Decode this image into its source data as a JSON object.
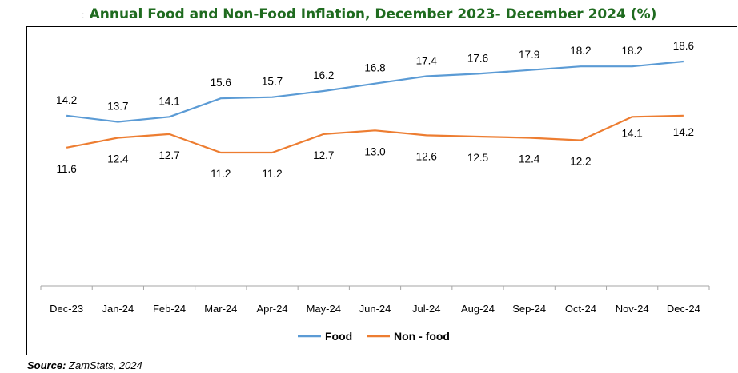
{
  "title_prefix": ":",
  "title": "Annual Food and Non-Food Inflation, December 2023- December 2024 (%)",
  "source_label": "Source:",
  "source_value": " ZamStats, 2024",
  "colors": {
    "food": "#5b9bd5",
    "nonfood": "#ed7d31",
    "title": "#1f6b1f"
  },
  "chart_data": {
    "type": "line",
    "title": "Annual Food and Non-Food Inflation, December 2023- December 2024 (%)",
    "xlabel": "",
    "ylabel": "",
    "categories": [
      "Dec-23",
      "Jan-24",
      "Feb-24",
      "Mar-24",
      "Apr-24",
      "May-24",
      "Jun-24",
      "Jul-24",
      "Aug-24",
      "Sep-24",
      "Oct-24",
      "Nov-24",
      "Dec-24"
    ],
    "series": [
      {
        "name": "Food",
        "color": "#5b9bd5",
        "values": [
          14.2,
          13.7,
          14.1,
          15.6,
          15.7,
          16.2,
          16.8,
          17.4,
          17.6,
          17.9,
          18.2,
          18.2,
          18.6
        ]
      },
      {
        "name": "Non - food",
        "color": "#ed7d31",
        "values": [
          11.6,
          12.4,
          12.7,
          11.2,
          11.2,
          12.7,
          13.0,
          12.6,
          12.5,
          12.4,
          12.2,
          14.1,
          14.2
        ]
      }
    ],
    "legend": "bottom-center",
    "grid": false,
    "data_labels": true
  }
}
